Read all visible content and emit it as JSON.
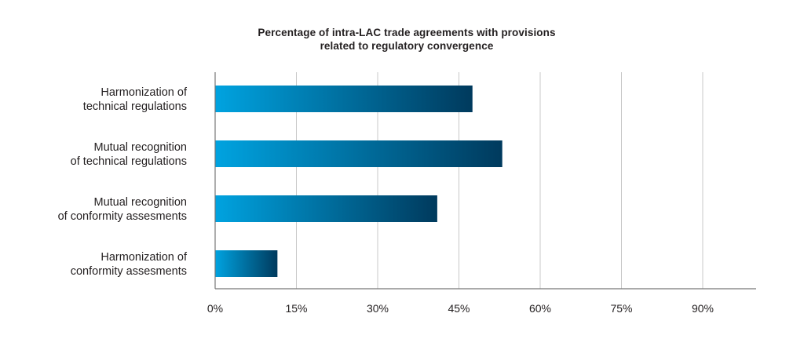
{
  "chart_data": {
    "type": "bar",
    "orientation": "horizontal",
    "title_lines": [
      "Percentage of intra-LAC trade agreements with provisions",
      "related to regulatory convergence"
    ],
    "categories": [
      [
        "Harmonization of",
        "technical regulations"
      ],
      [
        "Mutual recognition",
        "of technical regulations"
      ],
      [
        "Mutual recognition",
        "of conformity assesments"
      ],
      [
        "Harmonization of",
        "conformity assesments"
      ]
    ],
    "values": [
      47.5,
      53,
      41,
      11.5
    ],
    "xticks": [
      "0%",
      "15%",
      "30%",
      "45%",
      "60%",
      "75%",
      "90%"
    ],
    "xtick_values": [
      0,
      15,
      30,
      45,
      60,
      75,
      90
    ],
    "xlim": [
      0,
      100
    ],
    "grid": "vertical",
    "legend": "none",
    "colors": {
      "bar_gradient_start": "#00a3e0",
      "bar_gradient_end": "#003a5d",
      "grid": "#c8c8c8",
      "axis": "#777777",
      "text": "#231f20"
    }
  }
}
